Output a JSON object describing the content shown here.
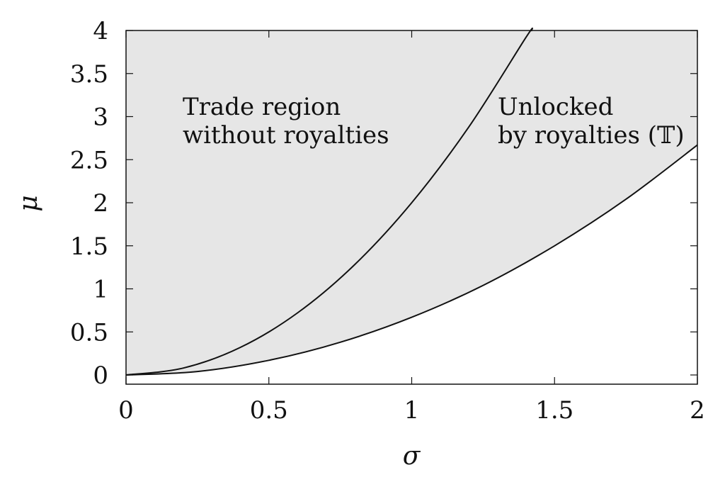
{
  "chart_data": {
    "type": "area",
    "xlabel": "σ",
    "ylabel": "μ",
    "xlim": [
      0,
      2
    ],
    "ylim": [
      0,
      4
    ],
    "x_ticks": [
      "0",
      "0.5",
      "1",
      "1.5",
      "2"
    ],
    "y_ticks": [
      "0",
      "0.5",
      "1",
      "1.5",
      "2",
      "2.5",
      "3",
      "3.5",
      "4"
    ],
    "x_tick_values": [
      0,
      0.5,
      1,
      1.5,
      2
    ],
    "y_tick_values": [
      0,
      0.5,
      1,
      1.5,
      2,
      2.5,
      3,
      3.5,
      4
    ],
    "grid": false,
    "series": [
      {
        "name": "Trade region without royalties",
        "fill": "#999999",
        "x": [
          0,
          0.2,
          0.4,
          0.6,
          0.8,
          1.0,
          1.2,
          1.4,
          1.42
        ],
        "y": [
          0,
          0.08,
          0.32,
          0.72,
          1.28,
          2.0,
          2.88,
          3.92,
          4.0
        ]
      },
      {
        "name": "Unlocked by royalties (𝕋)",
        "fill": "#e6e6e6",
        "x": [
          0,
          0.25,
          0.5,
          0.75,
          1.0,
          1.25,
          1.5,
          1.75,
          2.0
        ],
        "y": [
          0,
          0.04,
          0.17,
          0.38,
          0.67,
          1.04,
          1.5,
          2.04,
          2.67
        ]
      }
    ],
    "annotations": [
      {
        "lines": [
          "Trade region",
          "without royalties"
        ]
      },
      {
        "lines": [
          "Unlocked",
          "by royalties (𝕋)"
        ]
      }
    ]
  }
}
